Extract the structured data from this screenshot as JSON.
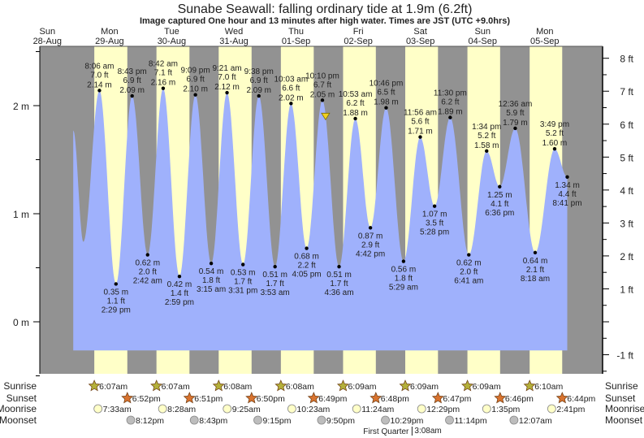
{
  "chart_data": {
    "type": "area",
    "title": "Sunabe Seawall: falling  ordinary tide at 1.9m (6.2ft)",
    "subtitle": "Image captured One hour and 13 minutes after high water. Times are JST (UTC +9.0hrs)",
    "days": [
      {
        "dow": "Sun",
        "date": "28-Aug"
      },
      {
        "dow": "Mon",
        "date": "29-Aug"
      },
      {
        "dow": "Tue",
        "date": "30-Aug"
      },
      {
        "dow": "Wed",
        "date": "31-Aug"
      },
      {
        "dow": "Thu",
        "date": "01-Sep"
      },
      {
        "dow": "Fri",
        "date": "02-Sep"
      },
      {
        "dow": "Sat",
        "date": "03-Sep"
      },
      {
        "dow": "Sun",
        "date": "04-Sep"
      },
      {
        "dow": "Mon",
        "date": "05-Sep"
      }
    ],
    "left_axis": {
      "unit": "m",
      "ticks": [
        "0 m",
        "1 m",
        "2 m"
      ],
      "values": [
        0,
        1,
        2
      ]
    },
    "right_axis": {
      "unit": "ft",
      "ticks": [
        "-1 ft",
        "1 ft",
        "2 ft",
        "3 ft",
        "4 ft",
        "5 ft",
        "6 ft",
        "7 ft",
        "8 ft"
      ],
      "values": [
        -1,
        1,
        2,
        3,
        4,
        5,
        6,
        7,
        8
      ]
    },
    "ylim_m": [
      -0.5,
      2.6
    ],
    "current": {
      "day": 4,
      "time": "11:23 pm",
      "height_m": 1.9,
      "height_ft": 6.2
    },
    "extremes": [
      {
        "day": 1,
        "type": "high",
        "time": "8:06 am",
        "ft": "7.0 ft",
        "m": "2.14 m",
        "value": 2.14
      },
      {
        "day": 1,
        "type": "low",
        "time": "2:29 pm",
        "ft": "1.1 ft",
        "m": "0.35 m",
        "value": 0.35
      },
      {
        "day": 1,
        "type": "high",
        "time": "8:43 pm",
        "ft": "6.9 ft",
        "m": "2.09 m",
        "value": 2.09
      },
      {
        "day": 2,
        "type": "low",
        "time": "2:42 am",
        "ft": "2.0 ft",
        "m": "0.62 m",
        "value": 0.62
      },
      {
        "day": 2,
        "type": "high",
        "time": "8:42 am",
        "ft": "7.1 ft",
        "m": "2.16 m",
        "value": 2.16
      },
      {
        "day": 2,
        "type": "low",
        "time": "2:59 pm",
        "ft": "1.4 ft",
        "m": "0.42 m",
        "value": 0.42
      },
      {
        "day": 2,
        "type": "high",
        "time": "9:09 pm",
        "ft": "6.9 ft",
        "m": "2.10 m",
        "value": 2.1
      },
      {
        "day": 3,
        "type": "low",
        "time": "3:15 am",
        "ft": "1.8 ft",
        "m": "0.54 m",
        "value": 0.54
      },
      {
        "day": 3,
        "type": "high",
        "time": "9:21 am",
        "ft": "7.0 ft",
        "m": "2.12 m",
        "value": 2.12
      },
      {
        "day": 3,
        "type": "low",
        "time": "3:31 pm",
        "ft": "1.7 ft",
        "m": "0.53 m",
        "value": 0.53
      },
      {
        "day": 3,
        "type": "high",
        "time": "9:38 pm",
        "ft": "6.9 ft",
        "m": "2.09 m",
        "value": 2.09
      },
      {
        "day": 4,
        "type": "low",
        "time": "3:53 am",
        "ft": "1.7 ft",
        "m": "0.51 m",
        "value": 0.51
      },
      {
        "day": 4,
        "type": "high",
        "time": "10:03 am",
        "ft": "6.6 ft",
        "m": "2.02 m",
        "value": 2.02
      },
      {
        "day": 4,
        "type": "low",
        "time": "4:05 pm",
        "ft": "2.2 ft",
        "m": "0.68 m",
        "value": 0.68
      },
      {
        "day": 4,
        "type": "high",
        "time": "10:10 pm",
        "ft": "6.7 ft",
        "m": "2.05 m",
        "value": 2.05
      },
      {
        "day": 5,
        "type": "low",
        "time": "4:36 am",
        "ft": "1.7 ft",
        "m": "0.51 m",
        "value": 0.51
      },
      {
        "day": 5,
        "type": "high",
        "time": "10:53 am",
        "ft": "6.2 ft",
        "m": "1.88 m",
        "value": 1.88
      },
      {
        "day": 5,
        "type": "low",
        "time": "4:42 pm",
        "ft": "2.9 ft",
        "m": "0.87 m",
        "value": 0.87
      },
      {
        "day": 5,
        "type": "high",
        "time": "10:46 pm",
        "ft": "6.5 ft",
        "m": "1.98 m",
        "value": 1.98
      },
      {
        "day": 6,
        "type": "low",
        "time": "5:29 am",
        "ft": "1.8 ft",
        "m": "0.56 m",
        "value": 0.56
      },
      {
        "day": 6,
        "type": "high",
        "time": "11:56 am",
        "ft": "5.6 ft",
        "m": "1.71 m",
        "value": 1.71
      },
      {
        "day": 6,
        "type": "low",
        "time": "5:28 pm",
        "ft": "3.5 ft",
        "m": "1.07 m",
        "value": 1.07
      },
      {
        "day": 6,
        "type": "high",
        "time": "11:30 pm",
        "ft": "6.2 ft",
        "m": "1.89 m",
        "value": 1.89
      },
      {
        "day": 7,
        "type": "low",
        "time": "6:41 am",
        "ft": "2.0 ft",
        "m": "0.62 m",
        "value": 0.62
      },
      {
        "day": 7,
        "type": "high",
        "time": "1:34 pm",
        "ft": "5.2 ft",
        "m": "1.58 m",
        "value": 1.58
      },
      {
        "day": 7,
        "type": "low",
        "time": "6:36 pm",
        "ft": "4.1 ft",
        "m": "1.25 m",
        "value": 1.25
      },
      {
        "day": 8,
        "type": "high",
        "time": "12:36 am",
        "ft": "5.9 ft",
        "m": "1.79 m",
        "value": 1.79
      },
      {
        "day": 8,
        "type": "low",
        "time": "8:18 am",
        "ft": "2.1 ft",
        "m": "0.64 m",
        "value": 0.64
      },
      {
        "day": 8,
        "type": "high",
        "time": "3:49 pm",
        "ft": "5.2 ft",
        "m": "1.60 m",
        "value": 1.6
      },
      {
        "day": 8,
        "type": "end",
        "time": "8:41 pm",
        "ft": "4.4 ft",
        "m": "1.34 m",
        "value": 1.34
      }
    ],
    "rows": {
      "sunrise": {
        "label": "Sunrise",
        "items": [
          {
            "day": 1,
            "time": "6:07am"
          },
          {
            "day": 2,
            "time": "6:07am"
          },
          {
            "day": 3,
            "time": "6:08am"
          },
          {
            "day": 4,
            "time": "6:08am"
          },
          {
            "day": 5,
            "time": "6:09am"
          },
          {
            "day": 6,
            "time": "6:09am"
          },
          {
            "day": 7,
            "time": "6:09am"
          },
          {
            "day": 8,
            "time": "6:10am"
          }
        ]
      },
      "sunset": {
        "label": "Sunset",
        "items": [
          {
            "day": 1,
            "time": "6:52pm"
          },
          {
            "day": 2,
            "time": "6:51pm"
          },
          {
            "day": 3,
            "time": "6:50pm"
          },
          {
            "day": 4,
            "time": "6:49pm"
          },
          {
            "day": 5,
            "time": "6:48pm"
          },
          {
            "day": 6,
            "time": "6:47pm"
          },
          {
            "day": 7,
            "time": "6:46pm"
          },
          {
            "day": 8,
            "time": "6:44pm"
          }
        ]
      },
      "moonrise": {
        "label": "Moonrise",
        "items": [
          {
            "day": 1,
            "time": "7:33am"
          },
          {
            "day": 2,
            "time": "8:28am"
          },
          {
            "day": 3,
            "time": "9:25am"
          },
          {
            "day": 4,
            "time": "10:23am"
          },
          {
            "day": 5,
            "time": "11:24am"
          },
          {
            "day": 6,
            "time": "12:29pm"
          },
          {
            "day": 7,
            "time": "1:35pm"
          },
          {
            "day": 8,
            "time": "2:41pm"
          }
        ]
      },
      "moonset": {
        "label": "Moonset",
        "items": [
          {
            "day": 1,
            "time": "8:12pm"
          },
          {
            "day": 2,
            "time": "8:43pm"
          },
          {
            "day": 3,
            "time": "9:15pm"
          },
          {
            "day": 4,
            "time": "9:50pm"
          },
          {
            "day": 5,
            "time": "10:29pm"
          },
          {
            "day": 6,
            "time": "11:14pm"
          },
          {
            "day": 8,
            "time": "12:07am"
          }
        ]
      }
    },
    "moon_phase": {
      "label": "First Quarter",
      "day": 6,
      "time": "3:08am"
    },
    "colors": {
      "night": "#929292",
      "day": "#ffffc8",
      "water": "#9fb1fc",
      "day_label": "#e8141a",
      "sunrise": "#b4b03a",
      "sunset": "#d8732f",
      "moonrise": "#ffffc8",
      "moonset": "#bdbdbd",
      "marker": "#f0d020"
    }
  }
}
